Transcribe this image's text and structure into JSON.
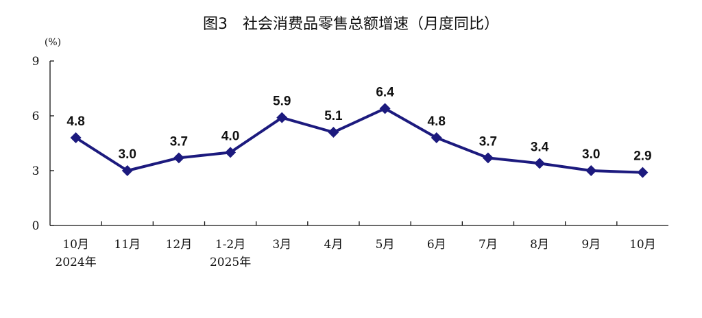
{
  "chart_data": {
    "type": "line",
    "title": "图3　社会消费品零售总额增速（月度同比）",
    "ylabel": "(%)",
    "xlabel": "",
    "categories": [
      "10月\n2024年",
      "11月",
      "12月",
      "1-2月\n2025年",
      "3月",
      "4月",
      "5月",
      "6月",
      "7月",
      "8月",
      "9月",
      "10月"
    ],
    "values": [
      4.8,
      3.0,
      3.7,
      4.0,
      5.9,
      5.1,
      6.4,
      4.8,
      3.7,
      3.4,
      3.0,
      2.9
    ],
    "data_labels": [
      "4.8",
      "3.0",
      "3.7",
      "4.0",
      "5.9",
      "5.1",
      "6.4",
      "4.8",
      "3.7",
      "3.4",
      "3.0",
      "2.9"
    ],
    "ylim": [
      0,
      9
    ],
    "yticks": [
      0,
      3,
      6,
      9
    ],
    "grid": false,
    "legend": "none",
    "line_color": "#1c1a7e",
    "marker": "diamond"
  }
}
